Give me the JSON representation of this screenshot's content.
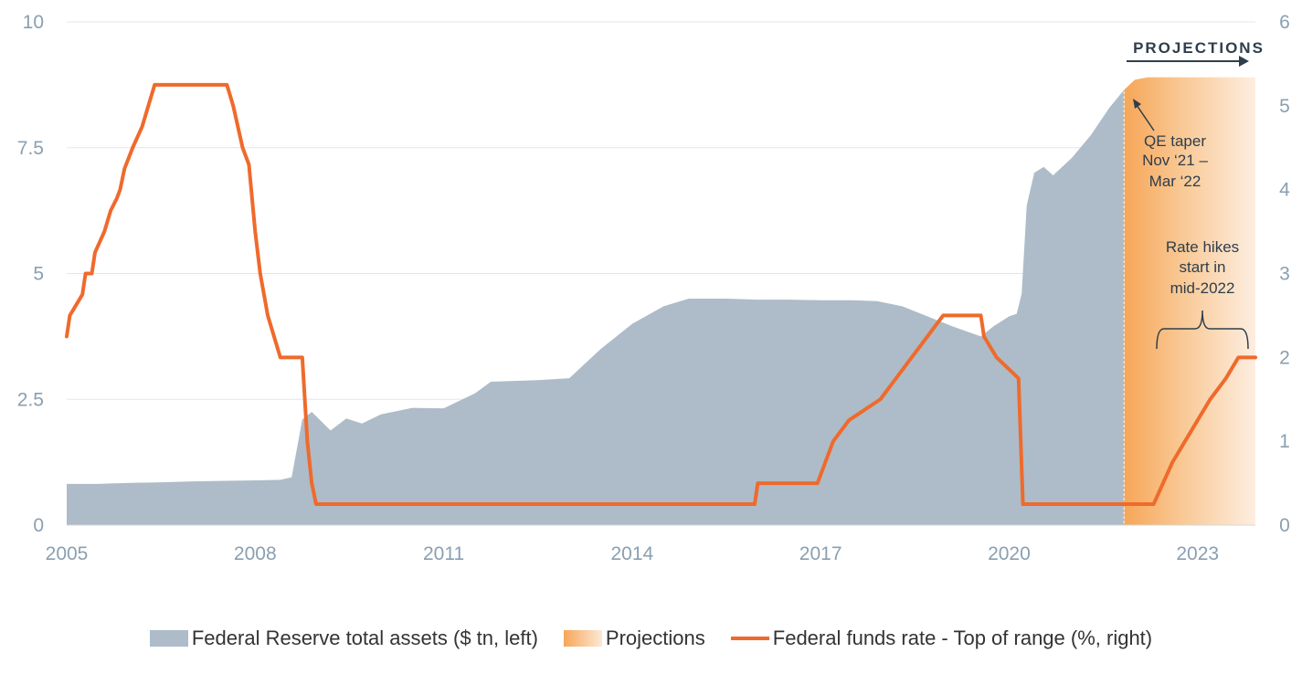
{
  "chart_data": {
    "type": "area",
    "title": "",
    "x_axis": {
      "min": 2005,
      "max": 2023.92,
      "ticks": [
        "2005",
        "2008",
        "2011",
        "2014",
        "2017",
        "2020",
        "2023"
      ]
    },
    "y_left": {
      "min": 0,
      "max": 10,
      "ticks": [
        "0",
        "2.5",
        "5",
        "7.5",
        "10"
      ]
    },
    "y_right": {
      "min": 0,
      "max": 6,
      "ticks": [
        "0",
        "1",
        "2",
        "3",
        "4",
        "5",
        "6"
      ]
    },
    "projection_start": 2021.83,
    "projection_label": "PROJECTIONS",
    "series": [
      {
        "name": "Federal Reserve total assets ($ tn, left)",
        "type": "area",
        "axis": "left",
        "color": "#adbcc8",
        "points": [
          [
            2005,
            0.82
          ],
          [
            2005.5,
            0.82
          ],
          [
            2006,
            0.84
          ],
          [
            2006.5,
            0.85
          ],
          [
            2007,
            0.87
          ],
          [
            2007.5,
            0.88
          ],
          [
            2008,
            0.89
          ],
          [
            2008.4,
            0.9
          ],
          [
            2008.58,
            0.95
          ],
          [
            2008.75,
            2.1
          ],
          [
            2008.9,
            2.25
          ],
          [
            2009.2,
            1.88
          ],
          [
            2009.45,
            2.12
          ],
          [
            2009.7,
            2.02
          ],
          [
            2010,
            2.2
          ],
          [
            2010.5,
            2.33
          ],
          [
            2011,
            2.32
          ],
          [
            2011.5,
            2.62
          ],
          [
            2011.75,
            2.85
          ],
          [
            2012,
            2.86
          ],
          [
            2012.5,
            2.88
          ],
          [
            2013,
            2.92
          ],
          [
            2013.5,
            3.5
          ],
          [
            2014,
            4.0
          ],
          [
            2014.5,
            4.35
          ],
          [
            2014.9,
            4.5
          ],
          [
            2015.5,
            4.5
          ],
          [
            2016,
            4.48
          ],
          [
            2016.5,
            4.48
          ],
          [
            2017,
            4.47
          ],
          [
            2017.5,
            4.47
          ],
          [
            2017.9,
            4.45
          ],
          [
            2018.3,
            4.35
          ],
          [
            2018.7,
            4.15
          ],
          [
            2019.1,
            3.95
          ],
          [
            2019.55,
            3.75
          ],
          [
            2019.75,
            3.95
          ],
          [
            2020.0,
            4.15
          ],
          [
            2020.12,
            4.2
          ],
          [
            2020.2,
            4.6
          ],
          [
            2020.28,
            6.35
          ],
          [
            2020.4,
            7.0
          ],
          [
            2020.55,
            7.12
          ],
          [
            2020.7,
            6.95
          ],
          [
            2021,
            7.3
          ],
          [
            2021.3,
            7.75
          ],
          [
            2021.6,
            8.3
          ],
          [
            2021.83,
            8.65
          ]
        ]
      },
      {
        "name": "Projections",
        "type": "area",
        "axis": "left",
        "color": "#f5a658",
        "points": [
          [
            2021.83,
            8.65
          ],
          [
            2022,
            8.85
          ],
          [
            2022.2,
            8.9
          ],
          [
            2023.92,
            8.9
          ]
        ]
      },
      {
        "name": "Federal funds rate - Top of range (%, right)",
        "type": "line",
        "axis": "right",
        "color": "#ef6a2c",
        "points": [
          [
            2005.0,
            2.25
          ],
          [
            2005.05,
            2.5
          ],
          [
            2005.25,
            2.75
          ],
          [
            2005.3,
            3.0
          ],
          [
            2005.4,
            3.0
          ],
          [
            2005.45,
            3.25
          ],
          [
            2005.6,
            3.5
          ],
          [
            2005.7,
            3.75
          ],
          [
            2005.8,
            3.9
          ],
          [
            2005.85,
            4.0
          ],
          [
            2005.92,
            4.25
          ],
          [
            2006.05,
            4.5
          ],
          [
            2006.2,
            4.75
          ],
          [
            2006.3,
            5.0
          ],
          [
            2006.4,
            5.25
          ],
          [
            2007.55,
            5.25
          ],
          [
            2007.65,
            5.0
          ],
          [
            2007.8,
            4.5
          ],
          [
            2007.9,
            4.3
          ],
          [
            2008.0,
            3.5
          ],
          [
            2008.08,
            3.0
          ],
          [
            2008.2,
            2.5
          ],
          [
            2008.3,
            2.25
          ],
          [
            2008.4,
            2.0
          ],
          [
            2008.75,
            2.0
          ],
          [
            2008.83,
            1.0
          ],
          [
            2008.9,
            0.5
          ],
          [
            2008.97,
            0.25
          ],
          [
            2015.95,
            0.25
          ],
          [
            2016.0,
            0.5
          ],
          [
            2016.95,
            0.5
          ],
          [
            2017.2,
            1.0
          ],
          [
            2017.45,
            1.25
          ],
          [
            2017.95,
            1.5
          ],
          [
            2018.2,
            1.75
          ],
          [
            2018.45,
            2.0
          ],
          [
            2018.7,
            2.25
          ],
          [
            2018.95,
            2.5
          ],
          [
            2019.55,
            2.5
          ],
          [
            2019.6,
            2.25
          ],
          [
            2019.8,
            2.0
          ],
          [
            2020.15,
            1.75
          ],
          [
            2020.22,
            0.25
          ],
          [
            2022.3,
            0.25
          ],
          [
            2022.45,
            0.5
          ],
          [
            2022.6,
            0.75
          ],
          [
            2022.8,
            1.0
          ],
          [
            2023.0,
            1.25
          ],
          [
            2023.2,
            1.5
          ],
          [
            2023.45,
            1.75
          ],
          [
            2023.65,
            2.0
          ],
          [
            2023.92,
            2.0
          ]
        ]
      }
    ],
    "annotations": {
      "qe_taper": [
        "QE taper",
        "Nov ‘21 –",
        "Mar ‘22"
      ],
      "rate_hikes": [
        "Rate hikes",
        "start in",
        "mid-2022"
      ]
    },
    "legend": {
      "placement": "bottom",
      "items": [
        {
          "label": "Federal Reserve total assets ($ tn, left)",
          "kind": "area",
          "color": "#adbcc8"
        },
        {
          "label": "Projections",
          "kind": "gradient",
          "color": "#f5a658"
        },
        {
          "label": "Federal funds rate - Top of range (%, right)",
          "kind": "line",
          "color": "#ef6a2c"
        }
      ]
    }
  }
}
